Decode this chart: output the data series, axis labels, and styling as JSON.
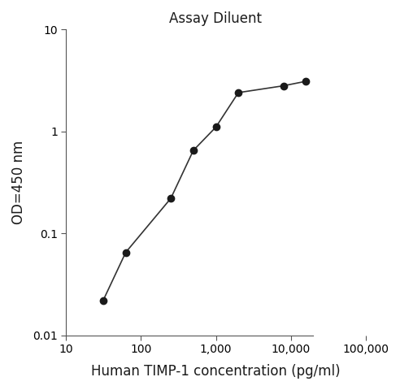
{
  "title": "Assay Diluent",
  "xlabel": "Human TIMP-1 concentration (pg/ml)",
  "ylabel": "OD=450 nm",
  "x_values": [
    31.25,
    62.5,
    250,
    500,
    1000,
    2000,
    8000,
    16000
  ],
  "y_values": [
    0.022,
    0.065,
    0.22,
    0.65,
    1.1,
    2.4,
    2.8,
    3.1
  ],
  "xlim": [
    10,
    100000
  ],
  "ylim": [
    0.01,
    10
  ],
  "x_ticks": [
    10,
    100,
    1000,
    10000,
    100000
  ],
  "x_tick_labels": [
    "10",
    "100",
    "1,000",
    "10,000",
    "100,000"
  ],
  "y_ticks": [
    0.01,
    0.1,
    1,
    10
  ],
  "y_tick_labels": [
    "0.01",
    "0.1",
    "1",
    "10"
  ],
  "line_color": "#333333",
  "marker_color": "#1a1a1a",
  "marker_size": 6,
  "line_width": 1.2,
  "background_color": "#ffffff",
  "title_fontsize": 12,
  "label_fontsize": 12,
  "tick_fontsize": 10
}
